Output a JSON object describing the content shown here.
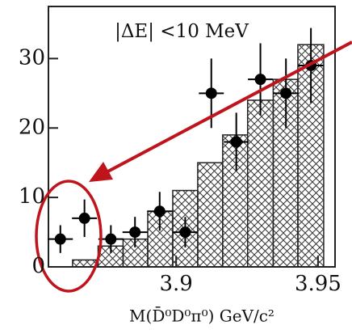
{
  "chart_data": {
    "type": "scatter",
    "title": "|ΔE| <10 MeV",
    "x_label": "M(D̄⁰D⁰π⁰) GeV/c²",
    "x": [
      3.8592,
      3.8677,
      3.877,
      3.8855,
      3.8942,
      3.9032,
      3.9124,
      3.9212,
      3.9297,
      3.9387,
      3.9475
    ],
    "values": [
      4,
      7,
      4,
      5,
      8,
      5,
      25,
      18,
      27,
      25,
      29
    ],
    "errors": [
      2,
      2.7,
      2,
      2.2,
      2.8,
      2.2,
      5,
      4.2,
      5.2,
      5,
      5.4
    ],
    "x_errors": [
      0.0044,
      0.0044,
      0.0044,
      0.0044,
      0.0044,
      0.0044,
      0.0044,
      0.0044,
      0.0044,
      0.0044,
      0.0044
    ],
    "color": "#000000",
    "histogram": {
      "bins": [
        3.8635,
        3.8725,
        3.8813,
        3.89,
        3.8988,
        3.9076,
        3.9164,
        3.9252,
        3.9342,
        3.9429,
        3.952
      ],
      "counts": [
        1,
        3,
        4,
        8,
        11,
        15,
        19,
        24,
        27,
        32
      ]
    },
    "xlim": [
      3.855,
      3.956
    ],
    "ylim": [
      0,
      37.5
    ],
    "xticks": [
      3.9,
      3.95
    ],
    "yticks": [
      0,
      10,
      20,
      30
    ]
  }
}
